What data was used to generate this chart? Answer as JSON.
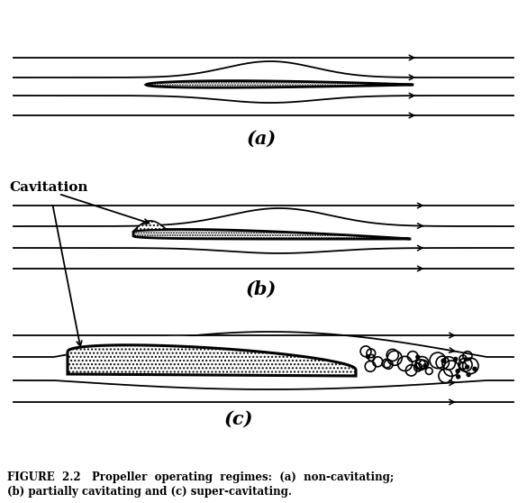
{
  "background_color": "#ffffff",
  "line_color": "#000000",
  "foil_edge_color": "#000000",
  "label_a": "(a)",
  "label_b": "(b)",
  "label_c": "(c)",
  "cavitation_text": "Cavitation",
  "caption_line1": "FIGURE  2.2   Propeller  operating  regimes:  (a)  non-cavitating;",
  "caption_line2": "(b) partially cavitating and (c) super-cavitating.",
  "figsize": [
    5.85,
    5.58
  ],
  "dpi": 100
}
